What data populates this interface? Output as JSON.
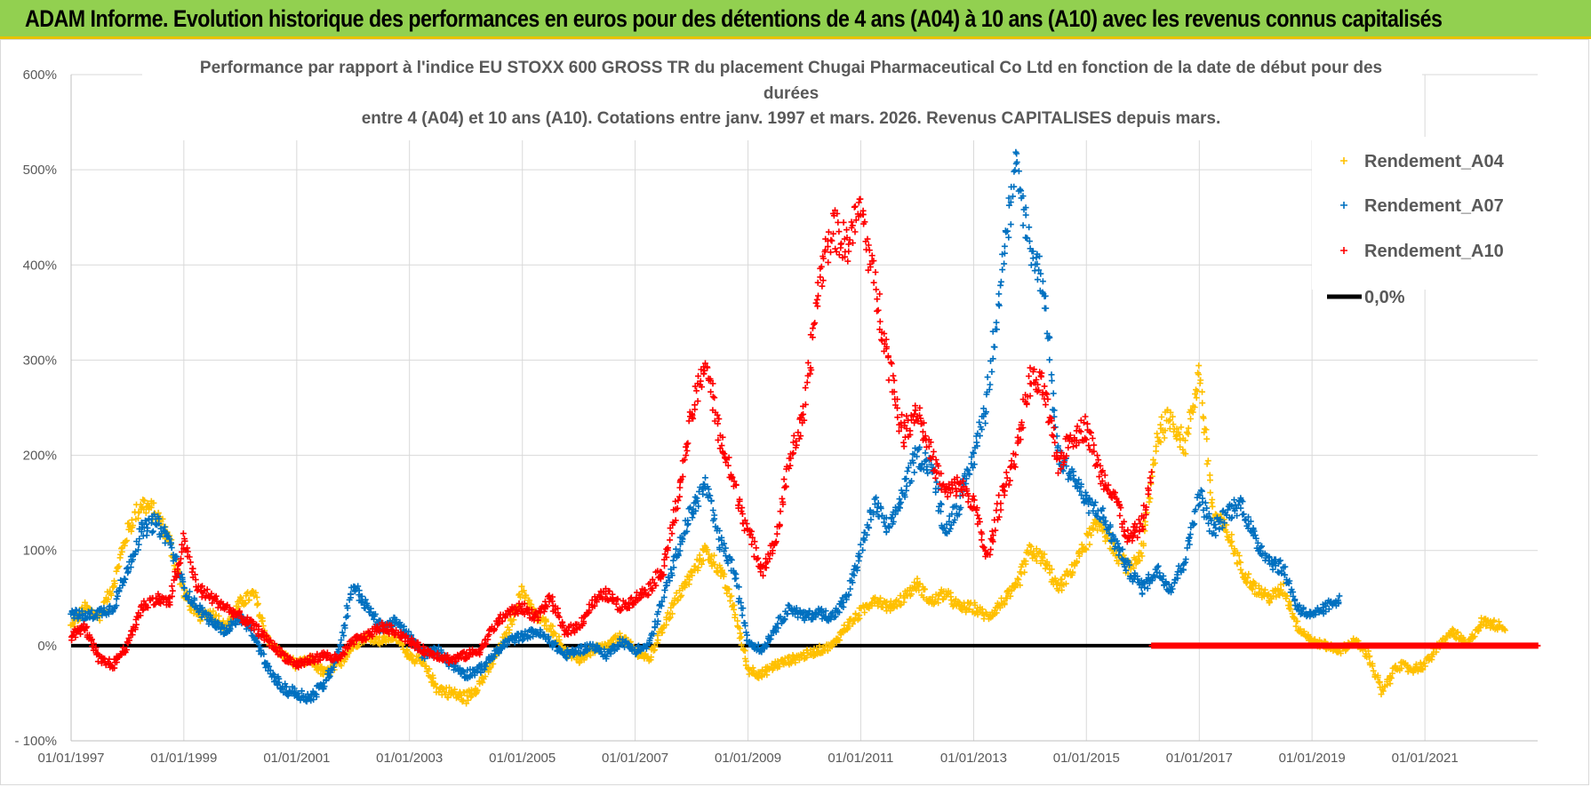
{
  "banner": {
    "title": "ADAM Informe. Evolution historique des performances en euros pour des détentions de 4 ans (A04) à 10 ans (A10) avec les revenus connus capitalisés"
  },
  "chart_data": {
    "type": "scatter",
    "title_lines": [
      "Performance par rapport à l'indice EU STOXX 600 GROSS TR  du placement Chugai Pharmaceutical Co Ltd en fonction de la date de début pour des",
      "durées",
      "entre 4 (A04) et 10 ans (A10).  Cotations entre janv. 1997 et mars. 2026.  Revenus CAPITALISES depuis mars."
    ],
    "xlim": [
      "1997-01-01",
      "2023-01-01"
    ],
    "ylim": [
      -100,
      600
    ],
    "yticks": [
      "600%",
      "500%",
      "400%",
      "300%",
      "200%",
      "100%",
      "0%",
      "- 100%"
    ],
    "xticks": [
      "01/01/1997",
      "01/01/1999",
      "01/01/2001",
      "01/01/2003",
      "01/01/2005",
      "01/01/2007",
      "01/01/2009",
      "01/01/2011",
      "01/01/2013",
      "01/01/2015",
      "01/01/2017",
      "01/01/2019",
      "01/01/2021"
    ],
    "grid": true,
    "legend_position": "top-right",
    "colors": {
      "A04": "#ffc000",
      "A07": "#0070c0",
      "A10": "#ff0000",
      "zero": "#000000"
    },
    "series": [
      {
        "name": "Rendement_A04",
        "key": "A04",
        "end": "2022-06-01",
        "points": [
          [
            "1997-01-01",
            20
          ],
          [
            "1997-04-01",
            40
          ],
          [
            "1997-07-01",
            30
          ],
          [
            "1997-10-01",
            65
          ],
          [
            "1998-01-01",
            120
          ],
          [
            "1998-04-01",
            150
          ],
          [
            "1998-07-01",
            140
          ],
          [
            "1998-10-01",
            110
          ],
          [
            "1999-01-01",
            55
          ],
          [
            "1999-04-01",
            30
          ],
          [
            "1999-07-01",
            35
          ],
          [
            "1999-10-01",
            20
          ],
          [
            "2000-01-01",
            45
          ],
          [
            "2000-04-01",
            55
          ],
          [
            "2000-07-01",
            5
          ],
          [
            "2000-10-01",
            -10
          ],
          [
            "2001-01-01",
            -20
          ],
          [
            "2001-04-01",
            -15
          ],
          [
            "2001-07-01",
            -30
          ],
          [
            "2001-10-01",
            -20
          ],
          [
            "2002-01-01",
            0
          ],
          [
            "2002-04-01",
            10
          ],
          [
            "2002-07-01",
            5
          ],
          [
            "2002-10-01",
            10
          ],
          [
            "2003-01-01",
            -10
          ],
          [
            "2003-04-01",
            -20
          ],
          [
            "2003-07-01",
            -45
          ],
          [
            "2003-10-01",
            -50
          ],
          [
            "2004-01-01",
            -55
          ],
          [
            "2004-04-01",
            -40
          ],
          [
            "2004-07-01",
            -15
          ],
          [
            "2004-10-01",
            15
          ],
          [
            "2005-01-01",
            60
          ],
          [
            "2005-04-01",
            30
          ],
          [
            "2005-07-01",
            20
          ],
          [
            "2005-10-01",
            -5
          ],
          [
            "2006-01-01",
            -15
          ],
          [
            "2006-04-01",
            -5
          ],
          [
            "2006-07-01",
            0
          ],
          [
            "2006-10-01",
            10
          ],
          [
            "2007-01-01",
            -5
          ],
          [
            "2007-04-01",
            -15
          ],
          [
            "2007-07-01",
            20
          ],
          [
            "2007-10-01",
            50
          ],
          [
            "2008-01-01",
            75
          ],
          [
            "2008-04-01",
            100
          ],
          [
            "2008-07-01",
            80
          ],
          [
            "2008-10-01",
            40
          ],
          [
            "2009-01-01",
            -25
          ],
          [
            "2009-04-01",
            -30
          ],
          [
            "2009-07-01",
            -20
          ],
          [
            "2009-10-01",
            -15
          ],
          [
            "2010-01-01",
            -10
          ],
          [
            "2010-04-01",
            -5
          ],
          [
            "2010-07-01",
            0
          ],
          [
            "2010-10-01",
            20
          ],
          [
            "2011-01-01",
            35
          ],
          [
            "2011-04-01",
            50
          ],
          [
            "2011-07-01",
            40
          ],
          [
            "2011-10-01",
            50
          ],
          [
            "2012-01-01",
            65
          ],
          [
            "2012-04-01",
            45
          ],
          [
            "2012-07-01",
            55
          ],
          [
            "2012-10-01",
            40
          ],
          [
            "2013-01-01",
            40
          ],
          [
            "2013-04-01",
            30
          ],
          [
            "2013-07-01",
            45
          ],
          [
            "2013-10-01",
            60
          ],
          [
            "2014-01-01",
            100
          ],
          [
            "2014-04-01",
            90
          ],
          [
            "2014-07-01",
            60
          ],
          [
            "2014-10-01",
            80
          ],
          [
            "2015-01-01",
            110
          ],
          [
            "2015-04-01",
            130
          ],
          [
            "2015-07-01",
            100
          ],
          [
            "2015-10-01",
            80
          ],
          [
            "2016-01-01",
            100
          ],
          [
            "2016-04-01",
            220
          ],
          [
            "2016-07-01",
            240
          ],
          [
            "2016-10-01",
            210
          ],
          [
            "2017-01-01",
            290
          ],
          [
            "2017-04-01",
            140
          ],
          [
            "2017-07-01",
            120
          ],
          [
            "2017-10-01",
            80
          ],
          [
            "2018-01-01",
            60
          ],
          [
            "2018-04-01",
            50
          ],
          [
            "2018-07-01",
            60
          ],
          [
            "2018-10-01",
            20
          ],
          [
            "2019-01-01",
            5
          ],
          [
            "2019-04-01",
            0
          ],
          [
            "2019-07-01",
            -5
          ],
          [
            "2019-10-01",
            5
          ],
          [
            "2020-01-01",
            -10
          ],
          [
            "2020-04-01",
            -50
          ],
          [
            "2020-07-01",
            -20
          ],
          [
            "2020-10-01",
            -25
          ],
          [
            "2021-01-01",
            -20
          ],
          [
            "2021-04-01",
            0
          ],
          [
            "2021-07-01",
            15
          ],
          [
            "2021-10-01",
            0
          ],
          [
            "2022-01-01",
            25
          ],
          [
            "2022-06-01",
            20
          ]
        ]
      },
      {
        "name": "Rendement_A07",
        "key": "A07",
        "end": "2019-07-01",
        "points": [
          [
            "1997-01-01",
            35
          ],
          [
            "1997-04-01",
            30
          ],
          [
            "1997-07-01",
            35
          ],
          [
            "1997-10-01",
            40
          ],
          [
            "1998-01-01",
            80
          ],
          [
            "1998-04-01",
            120
          ],
          [
            "1998-07-01",
            130
          ],
          [
            "1998-10-01",
            110
          ],
          [
            "1999-01-01",
            60
          ],
          [
            "1999-04-01",
            40
          ],
          [
            "1999-07-01",
            25
          ],
          [
            "1999-10-01",
            15
          ],
          [
            "2000-01-01",
            30
          ],
          [
            "2000-04-01",
            10
          ],
          [
            "2000-07-01",
            -25
          ],
          [
            "2000-10-01",
            -45
          ],
          [
            "2001-01-01",
            -50
          ],
          [
            "2001-04-01",
            -55
          ],
          [
            "2001-07-01",
            -40
          ],
          [
            "2001-10-01",
            -5
          ],
          [
            "2002-01-01",
            65
          ],
          [
            "2002-04-01",
            40
          ],
          [
            "2002-07-01",
            20
          ],
          [
            "2002-10-01",
            25
          ],
          [
            "2003-01-01",
            10
          ],
          [
            "2003-04-01",
            -10
          ],
          [
            "2003-07-01",
            -5
          ],
          [
            "2003-10-01",
            -20
          ],
          [
            "2004-01-01",
            -30
          ],
          [
            "2004-04-01",
            -25
          ],
          [
            "2004-07-01",
            -10
          ],
          [
            "2004-10-01",
            5
          ],
          [
            "2005-01-01",
            10
          ],
          [
            "2005-04-01",
            15
          ],
          [
            "2005-07-01",
            5
          ],
          [
            "2005-10-01",
            -10
          ],
          [
            "2006-01-01",
            -5
          ],
          [
            "2006-04-01",
            0
          ],
          [
            "2006-07-01",
            -10
          ],
          [
            "2006-10-01",
            5
          ],
          [
            "2007-01-01",
            -5
          ],
          [
            "2007-04-01",
            0
          ],
          [
            "2007-07-01",
            50
          ],
          [
            "2007-10-01",
            100
          ],
          [
            "2008-01-01",
            140
          ],
          [
            "2008-04-01",
            170
          ],
          [
            "2008-07-01",
            110
          ],
          [
            "2008-10-01",
            80
          ],
          [
            "2009-01-01",
            5
          ],
          [
            "2009-04-01",
            -5
          ],
          [
            "2009-07-01",
            20
          ],
          [
            "2009-10-01",
            40
          ],
          [
            "2010-01-01",
            30
          ],
          [
            "2010-04-01",
            35
          ],
          [
            "2010-07-01",
            30
          ],
          [
            "2010-10-01",
            50
          ],
          [
            "2011-01-01",
            100
          ],
          [
            "2011-04-01",
            150
          ],
          [
            "2011-07-01",
            120
          ],
          [
            "2011-10-01",
            160
          ],
          [
            "2012-01-01",
            200
          ],
          [
            "2012-04-01",
            190
          ],
          [
            "2012-07-01",
            120
          ],
          [
            "2012-10-01",
            150
          ],
          [
            "2013-01-01",
            200
          ],
          [
            "2013-04-01",
            260
          ],
          [
            "2013-07-01",
            400
          ],
          [
            "2013-10-01",
            500
          ],
          [
            "2014-01-01",
            420
          ],
          [
            "2014-04-01",
            380
          ],
          [
            "2014-07-01",
            200
          ],
          [
            "2014-10-01",
            180
          ],
          [
            "2015-01-01",
            150
          ],
          [
            "2015-04-01",
            140
          ],
          [
            "2015-07-01",
            110
          ],
          [
            "2015-10-01",
            80
          ],
          [
            "2016-01-01",
            60
          ],
          [
            "2016-04-01",
            80
          ],
          [
            "2016-07-01",
            60
          ],
          [
            "2016-10-01",
            90
          ],
          [
            "2017-01-01",
            160
          ],
          [
            "2017-04-01",
            120
          ],
          [
            "2017-07-01",
            140
          ],
          [
            "2017-10-01",
            150
          ],
          [
            "2018-01-01",
            110
          ],
          [
            "2018-04-01",
            90
          ],
          [
            "2018-07-01",
            80
          ],
          [
            "2018-10-01",
            40
          ],
          [
            "2019-01-01",
            30
          ],
          [
            "2019-04-01",
            40
          ],
          [
            "2019-07-01",
            50
          ]
        ]
      },
      {
        "name": "Rendement_A10",
        "key": "A10",
        "end": "2016-03-01",
        "points": [
          [
            "1997-01-01",
            10
          ],
          [
            "1997-04-01",
            20
          ],
          [
            "1997-07-01",
            -15
          ],
          [
            "1997-10-01",
            -20
          ],
          [
            "1998-01-01",
            0
          ],
          [
            "1998-04-01",
            40
          ],
          [
            "1998-07-01",
            50
          ],
          [
            "1998-10-01",
            45
          ],
          [
            "1999-01-01",
            110
          ],
          [
            "1999-04-01",
            60
          ],
          [
            "1999-07-01",
            50
          ],
          [
            "1999-10-01",
            40
          ],
          [
            "2000-01-01",
            30
          ],
          [
            "2000-04-01",
            20
          ],
          [
            "2000-07-01",
            5
          ],
          [
            "2000-10-01",
            -10
          ],
          [
            "2001-01-01",
            -20
          ],
          [
            "2001-04-01",
            -15
          ],
          [
            "2001-07-01",
            -10
          ],
          [
            "2001-10-01",
            -15
          ],
          [
            "2002-01-01",
            5
          ],
          [
            "2002-04-01",
            10
          ],
          [
            "2002-07-01",
            20
          ],
          [
            "2002-10-01",
            15
          ],
          [
            "2003-01-01",
            5
          ],
          [
            "2003-04-01",
            -5
          ],
          [
            "2003-07-01",
            -10
          ],
          [
            "2003-10-01",
            -15
          ],
          [
            "2004-01-01",
            -10
          ],
          [
            "2004-04-01",
            -5
          ],
          [
            "2004-07-01",
            20
          ],
          [
            "2004-10-01",
            35
          ],
          [
            "2005-01-01",
            40
          ],
          [
            "2005-04-01",
            30
          ],
          [
            "2005-07-01",
            50
          ],
          [
            "2005-10-01",
            15
          ],
          [
            "2006-01-01",
            20
          ],
          [
            "2006-04-01",
            45
          ],
          [
            "2006-07-01",
            55
          ],
          [
            "2006-10-01",
            40
          ],
          [
            "2007-01-01",
            50
          ],
          [
            "2007-04-01",
            60
          ],
          [
            "2007-07-01",
            80
          ],
          [
            "2007-10-01",
            150
          ],
          [
            "2008-01-01",
            240
          ],
          [
            "2008-04-01",
            300
          ],
          [
            "2008-07-01",
            220
          ],
          [
            "2008-10-01",
            170
          ],
          [
            "2009-01-01",
            120
          ],
          [
            "2009-04-01",
            80
          ],
          [
            "2009-07-01",
            110
          ],
          [
            "2009-10-01",
            200
          ],
          [
            "2010-01-01",
            240
          ],
          [
            "2010-04-01",
            380
          ],
          [
            "2010-07-01",
            440
          ],
          [
            "2010-10-01",
            420
          ],
          [
            "2011-01-01",
            460
          ],
          [
            "2011-04-01",
            380
          ],
          [
            "2011-07-01",
            300
          ],
          [
            "2011-10-01",
            220
          ],
          [
            "2012-01-01",
            250
          ],
          [
            "2012-04-01",
            200
          ],
          [
            "2012-07-01",
            160
          ],
          [
            "2012-10-01",
            170
          ],
          [
            "2013-01-01",
            150
          ],
          [
            "2013-04-01",
            90
          ],
          [
            "2013-07-01",
            160
          ],
          [
            "2013-10-01",
            200
          ],
          [
            "2014-01-01",
            280
          ],
          [
            "2014-04-01",
            270
          ],
          [
            "2014-07-01",
            190
          ],
          [
            "2014-10-01",
            220
          ],
          [
            "2015-01-01",
            230
          ],
          [
            "2015-04-01",
            180
          ],
          [
            "2015-07-01",
            160
          ],
          [
            "2015-10-01",
            110
          ],
          [
            "2016-01-01",
            130
          ],
          [
            "2016-03-01",
            180
          ]
        ]
      },
      {
        "name": "0,0%",
        "key": "zero",
        "constant": 0
      }
    ]
  }
}
